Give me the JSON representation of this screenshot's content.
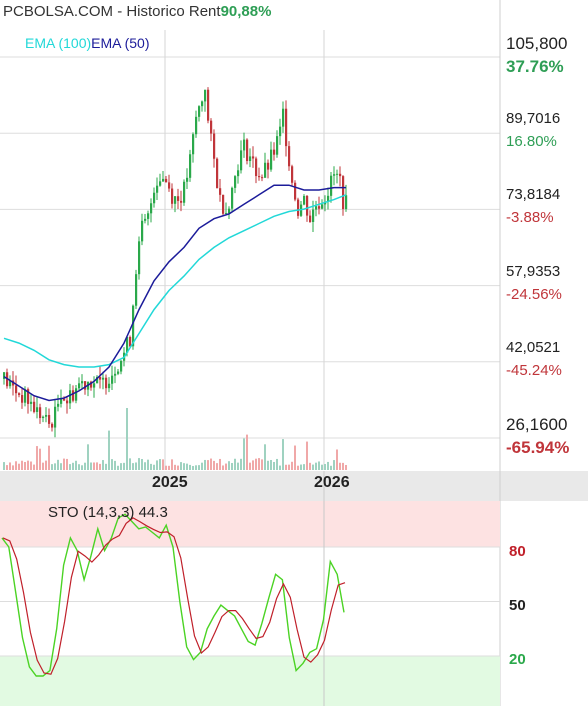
{
  "header": {
    "title": "PCBOLSA.COM - Historico",
    "rent_label": "Rent",
    "rent_value": "90,88%"
  },
  "colors": {
    "up": "#2aa84a",
    "down": "#c0353a",
    "ema100": "#22d8d8",
    "ema50": "#1c1c9a",
    "vol_up": "#9fd2c0",
    "vol_down": "#f0a8a8",
    "overbought_zone": "#fde2e2",
    "oversold_zone": "#e2fae2",
    "sto_k": "#4bd324",
    "sto_d": "#c0202a",
    "rent_up": "#2e9e55",
    "rent_down": "#c0353a"
  },
  "chart_data": [
    {
      "type": "candlestick",
      "title": "PCBOLSA.COM - Historico",
      "x_tick_labels": [
        "2025",
        "2026"
      ],
      "legend": [
        {
          "name": "EMA (100)",
          "color": "#22d8d8"
        },
        {
          "name": "EMA (50)",
          "color": "#1c1c9a"
        }
      ],
      "ylim": [
        26.16,
        105.8
      ],
      "price_labels": [
        {
          "price": "105,800",
          "pct": "37.76%"
        },
        {
          "price": "89,7016",
          "pct": "16.80%"
        },
        {
          "price": "73,8184",
          "pct": "-3.88%"
        },
        {
          "price": "57,9353",
          "pct": "-24.56%"
        },
        {
          "price": "42,0521",
          "pct": "-45.24%"
        },
        {
          "price": "26,1600",
          "pct": "-65.94%"
        }
      ],
      "price_path": [
        [
          0,
          38.5
        ],
        [
          4,
          36
        ],
        [
          8,
          34
        ],
        [
          12,
          31
        ],
        [
          15,
          29
        ],
        [
          17,
          31
        ],
        [
          19,
          36
        ],
        [
          21,
          34
        ],
        [
          25,
          37.5
        ],
        [
          29,
          38.3
        ],
        [
          32,
          37
        ],
        [
          34,
          38.5
        ],
        [
          36,
          40
        ],
        [
          38,
          42
        ],
        [
          40,
          44
        ],
        [
          42,
          47
        ],
        [
          44,
          62
        ],
        [
          46,
          70
        ],
        [
          48,
          72
        ],
        [
          50,
          79
        ],
        [
          52,
          81
        ],
        [
          54,
          80
        ],
        [
          56,
          77
        ],
        [
          58,
          76
        ],
        [
          60,
          78
        ],
        [
          62,
          84
        ],
        [
          64,
          93
        ],
        [
          66,
          97
        ],
        [
          67,
          100
        ],
        [
          68,
          92
        ],
        [
          70,
          84
        ],
        [
          72,
          76
        ],
        [
          74,
          74
        ],
        [
          76,
          78
        ],
        [
          78,
          84
        ],
        [
          80,
          87
        ],
        [
          82,
          85
        ],
        [
          84,
          82
        ],
        [
          86,
          81
        ],
        [
          88,
          83
        ],
        [
          90,
          86
        ],
        [
          92,
          90
        ],
        [
          93,
          94
        ],
        [
          94,
          89
        ],
        [
          96,
          80
        ],
        [
          98,
          74
        ],
        [
          100,
          76
        ],
        [
          102,
          72
        ],
        [
          104,
          75
        ],
        [
          106,
          76
        ],
        [
          108,
          78
        ],
        [
          110,
          81
        ],
        [
          112,
          80
        ],
        [
          113,
          76
        ],
        [
          114,
          75
        ]
      ],
      "ema100_path": [
        [
          0,
          47
        ],
        [
          5,
          46
        ],
        [
          10,
          44.5
        ],
        [
          15,
          42.5
        ],
        [
          20,
          41.5
        ],
        [
          25,
          41
        ],
        [
          30,
          41
        ],
        [
          35,
          41.5
        ],
        [
          40,
          43
        ],
        [
          45,
          48
        ],
        [
          50,
          53
        ],
        [
          55,
          57
        ],
        [
          60,
          60
        ],
        [
          65,
          63.5
        ],
        [
          70,
          66
        ],
        [
          75,
          68
        ],
        [
          80,
          69.5
        ],
        [
          85,
          71
        ],
        [
          90,
          72.5
        ],
        [
          95,
          73.5
        ],
        [
          100,
          74
        ],
        [
          105,
          75
        ],
        [
          110,
          76
        ],
        [
          114,
          77
        ]
      ],
      "ema50_path": [
        [
          0,
          39
        ],
        [
          5,
          37
        ],
        [
          10,
          35
        ],
        [
          15,
          34
        ],
        [
          20,
          34.5
        ],
        [
          25,
          36
        ],
        [
          30,
          38
        ],
        [
          35,
          41
        ],
        [
          40,
          46
        ],
        [
          45,
          53
        ],
        [
          50,
          59
        ],
        [
          55,
          63
        ],
        [
          60,
          66
        ],
        [
          65,
          70
        ],
        [
          70,
          72
        ],
        [
          75,
          73
        ],
        [
          80,
          75
        ],
        [
          85,
          77
        ],
        [
          90,
          79
        ],
        [
          95,
          79
        ],
        [
          100,
          78
        ],
        [
          105,
          78
        ],
        [
          110,
          78.5
        ],
        [
          114,
          78.5
        ]
      ]
    },
    {
      "type": "line",
      "title": "STO (14,3,3) 44.3",
      "ylim": [
        0,
        100
      ],
      "levels": [
        80,
        50,
        20
      ],
      "series": [
        {
          "name": "STO (14,3,3)",
          "values": [
            85,
            80,
            55,
            30,
            14,
            9,
            9,
            12,
            35,
            70,
            85,
            78,
            62,
            75,
            90,
            78,
            85,
            96,
            98,
            94,
            90,
            91,
            88,
            85,
            92,
            80,
            50,
            25,
            18,
            22,
            35,
            42,
            48,
            45,
            42,
            35,
            28,
            26,
            38,
            52,
            65,
            62,
            30,
            12,
            16,
            22,
            24,
            40,
            72,
            65,
            44
          ]
        }
      ]
    }
  ],
  "oscillator": {
    "label": "STO (14,3,3) 44.3",
    "levels": [
      "80",
      "50",
      "20"
    ]
  }
}
